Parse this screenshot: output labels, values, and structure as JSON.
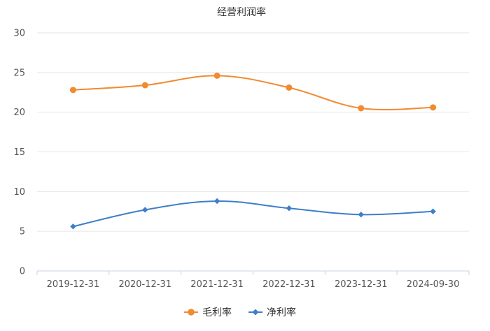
{
  "chart_data": {
    "type": "line",
    "title": "经营利润率",
    "xlabel": "",
    "ylabel": "",
    "categories": [
      "2019-12-31",
      "2020-12-31",
      "2021-12-31",
      "2022-12-31",
      "2023-12-31",
      "2024-09-30"
    ],
    "ylim": [
      0,
      30
    ],
    "yticks": [
      "0",
      "5",
      "10",
      "15",
      "20",
      "25",
      "30"
    ],
    "grid": true,
    "legend_position": "bottom",
    "series": [
      {
        "name": "毛利率",
        "values": [
          22.8,
          23.4,
          24.6,
          23.1,
          20.5,
          20.6
        ],
        "color": "#f28a30",
        "marker": "circle"
      },
      {
        "name": "净利率",
        "values": [
          5.6,
          7.7,
          8.8,
          7.9,
          7.1,
          7.5
        ],
        "color": "#3f7ec7",
        "marker": "diamond"
      }
    ]
  }
}
